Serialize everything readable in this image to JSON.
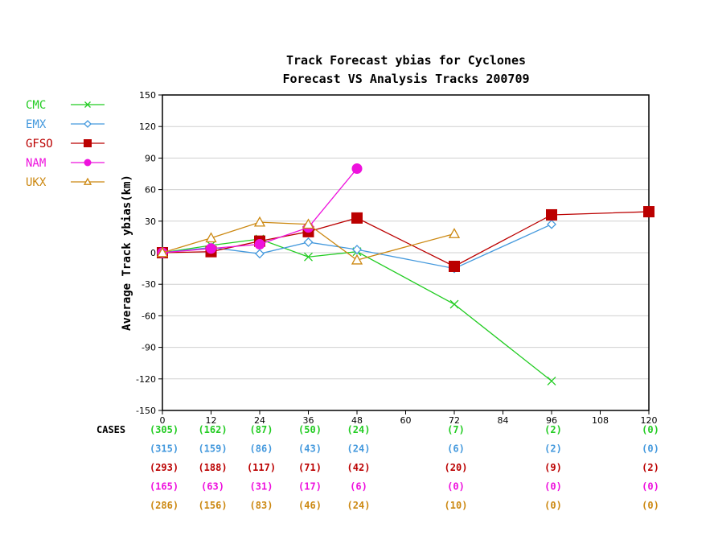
{
  "chart_data": {
    "type": "line",
    "title": "Track Forecast ybias for Cyclones",
    "subtitle": "Forecast VS Analysis Tracks 200709",
    "ylabel": "Average Track ybias(km)",
    "xlabel": "",
    "xlim": [
      0,
      120
    ],
    "ylim": [
      -150,
      150
    ],
    "x_ticks": [
      0,
      12,
      24,
      36,
      48,
      60,
      72,
      84,
      96,
      108,
      120
    ],
    "y_ticks": [
      150,
      120,
      90,
      60,
      30,
      0,
      -30,
      -60,
      -90,
      -120,
      -150
    ],
    "grid": "horizontal",
    "legend_position": "top-left",
    "cases_label": "CASES",
    "series": [
      {
        "name": "CMC",
        "color": "#22cc22",
        "marker": "x",
        "x": [
          0,
          12,
          24,
          36,
          48,
          72,
          96
        ],
        "values": [
          0,
          7,
          13,
          -4,
          1,
          -49,
          -122
        ],
        "cases": [
          "(305)",
          "(162)",
          "(87)",
          "(50)",
          "(24)",
          "(7)",
          "(2)",
          "(0)"
        ]
      },
      {
        "name": "EMX",
        "color": "#4499dd",
        "marker": "diamond",
        "x": [
          0,
          12,
          24,
          36,
          48,
          72,
          96
        ],
        "values": [
          0,
          5,
          -1,
          10,
          3,
          -15,
          27
        ],
        "cases": [
          "(315)",
          "(159)",
          "(86)",
          "(43)",
          "(24)",
          "(6)",
          "(2)",
          "(0)"
        ]
      },
      {
        "name": "GFSO",
        "color": "#bb0000",
        "marker": "square",
        "x": [
          0,
          12,
          24,
          36,
          48,
          72,
          96,
          120
        ],
        "values": [
          0,
          1,
          11,
          20,
          33,
          -13,
          36,
          39
        ],
        "cases": [
          "(293)",
          "(188)",
          "(117)",
          "(71)",
          "(42)",
          "(20)",
          "(9)",
          "(2)"
        ]
      },
      {
        "name": "NAM",
        "color": "#ee11dd",
        "marker": "circle",
        "x": [
          0,
          12,
          24,
          36,
          48
        ],
        "values": [
          0,
          4,
          8,
          24,
          80
        ],
        "cases": [
          "(165)",
          "(63)",
          "(31)",
          "(17)",
          "(6)",
          "(0)",
          "(0)",
          "(0)"
        ]
      },
      {
        "name": "UKX",
        "color": "#cc8811",
        "marker": "triangle",
        "x": [
          0,
          12,
          24,
          36,
          48,
          72
        ],
        "values": [
          0,
          14,
          29,
          27,
          -7,
          18
        ],
        "cases": [
          "(286)",
          "(156)",
          "(83)",
          "(46)",
          "(24)",
          "(10)",
          "(0)",
          "(0)"
        ]
      }
    ],
    "cases_x": [
      0,
      12,
      24,
      36,
      48,
      72,
      96,
      120
    ]
  }
}
